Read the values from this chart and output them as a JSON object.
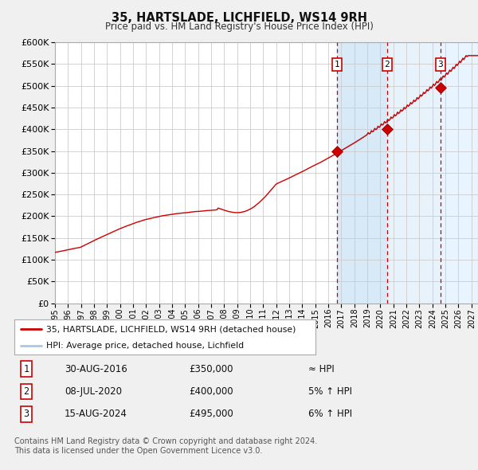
{
  "title": "35, HARTSLADE, LICHFIELD, WS14 9RH",
  "subtitle": "Price paid vs. HM Land Registry's House Price Index (HPI)",
  "ylim": [
    0,
    600000
  ],
  "yticks": [
    0,
    50000,
    100000,
    150000,
    200000,
    250000,
    300000,
    350000,
    400000,
    450000,
    500000,
    550000,
    600000
  ],
  "xlim_start": 1995.0,
  "xlim_end": 2027.5,
  "hpi_color": "#a8c8e8",
  "price_color": "#cc0000",
  "sale_marker_color": "#cc0000",
  "bg_color": "#f0f0f0",
  "plot_bg": "#ffffff",
  "grid_color": "#cccccc",
  "sale1_x": 2016.66,
  "sale1_y": 350000,
  "sale2_x": 2020.52,
  "sale2_y": 400000,
  "sale3_x": 2024.62,
  "sale3_y": 495000,
  "legend_label1": "35, HARTSLADE, LICHFIELD, WS14 9RH (detached house)",
  "legend_label2": "HPI: Average price, detached house, Lichfield",
  "table_entries": [
    {
      "num": "1",
      "date": "30-AUG-2016",
      "price": "£350,000",
      "note": "≈ HPI"
    },
    {
      "num": "2",
      "date": "08-JUL-2020",
      "price": "£400,000",
      "note": "5% ↑ HPI"
    },
    {
      "num": "3",
      "date": "15-AUG-2024",
      "price": "£495,000",
      "note": "6% ↑ HPI"
    }
  ],
  "footnote1": "Contains HM Land Registry data © Crown copyright and database right 2024.",
  "footnote2": "This data is licensed under the Open Government Licence v3.0.",
  "shade1_color": "#d8eaf8",
  "shade2_color": "#e8f2fb"
}
